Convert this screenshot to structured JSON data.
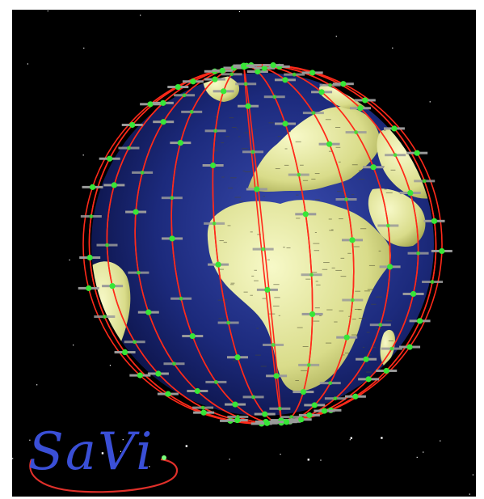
{
  "logo": {
    "text": "SaVi",
    "color": "#3a4fd6",
    "swoosh_color": "#e0302a",
    "dot_color": "#7cff7c"
  },
  "scene": {
    "subject": "globe-with-satellite-constellation",
    "colors": {
      "space": "#000000",
      "ocean": "#1a2470",
      "land": "#e6eba0",
      "orbit": "#ff2a1a",
      "satellite_body": "#37e637",
      "satellite_panel": "#9a9a9a",
      "star": "#ffffff"
    }
  }
}
